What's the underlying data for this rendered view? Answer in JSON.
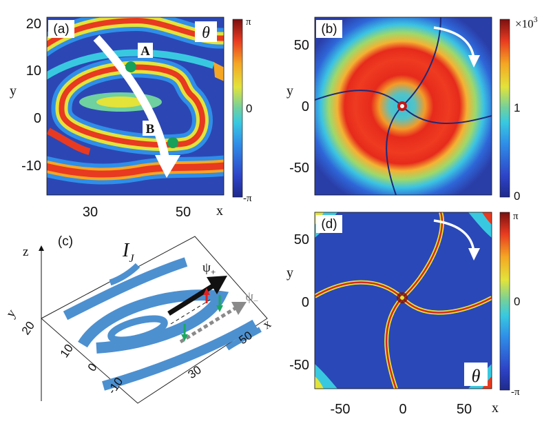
{
  "figure": {
    "description_free": true
  },
  "chart_data": [
    {
      "panel": "(a)",
      "type": "heatmap",
      "quantity_label": "θ",
      "x_label": "x",
      "y_label": "y",
      "xlim": [
        20,
        58
      ],
      "ylim": [
        -16,
        22
      ],
      "x_ticks": [
        "30",
        "50"
      ],
      "x_tick_values": [
        30,
        50
      ],
      "y_ticks": [
        "20",
        "10",
        "0",
        "-10"
      ],
      "y_tick_values": [
        20,
        10,
        0,
        -10
      ],
      "colorbar": {
        "ticks": [
          "π",
          "0",
          "-π"
        ],
        "tick_values": [
          3.1416,
          0,
          -3.1416
        ]
      },
      "markers": [
        {
          "label": "A",
          "x": 37.5,
          "y": 10.5
        },
        {
          "label": "B",
          "x": 48.0,
          "y": -6.2
        }
      ]
    },
    {
      "panel": "(b)",
      "type": "heatmap",
      "x_label": "x",
      "y_label": "y",
      "xlim": [
        -70,
        70
      ],
      "ylim": [
        -70,
        70
      ],
      "y_ticks": [
        "50",
        "0",
        "-50"
      ],
      "y_tick_values": [
        50,
        0,
        -50
      ],
      "colorbar": {
        "ticks": [
          "1",
          "0"
        ],
        "tick_values": [
          1000,
          0
        ],
        "exponent_label": "×10",
        "exponent_power": "3"
      }
    },
    {
      "panel": "(c)",
      "type": "heatmap",
      "quantity_label": "I",
      "quantity_subscript": "J",
      "axis_labels": {
        "x": "x",
        "y": "y",
        "z": "z"
      },
      "x_ticks": [
        "30",
        "50"
      ],
      "y_ticks": [
        "20",
        "10",
        "0",
        "-10"
      ],
      "arrows": [
        {
          "label": "ψ",
          "subscript": "+"
        },
        {
          "label": "ψ",
          "subscript": "−"
        }
      ]
    },
    {
      "panel": "(d)",
      "type": "heatmap",
      "quantity_label": "θ",
      "x_label": "x",
      "y_label": "y",
      "xlim": [
        -70,
        70
      ],
      "ylim": [
        -70,
        70
      ],
      "x_ticks": [
        "-50",
        "0",
        "50"
      ],
      "x_tick_values": [
        -50,
        0,
        50
      ],
      "y_ticks": [
        "50",
        "0",
        "-50"
      ],
      "y_tick_values": [
        50,
        0,
        -50
      ],
      "colorbar": {
        "ticks": [
          "π",
          "0",
          "-π"
        ],
        "tick_values": [
          3.1416,
          0,
          -3.1416
        ]
      }
    }
  ]
}
